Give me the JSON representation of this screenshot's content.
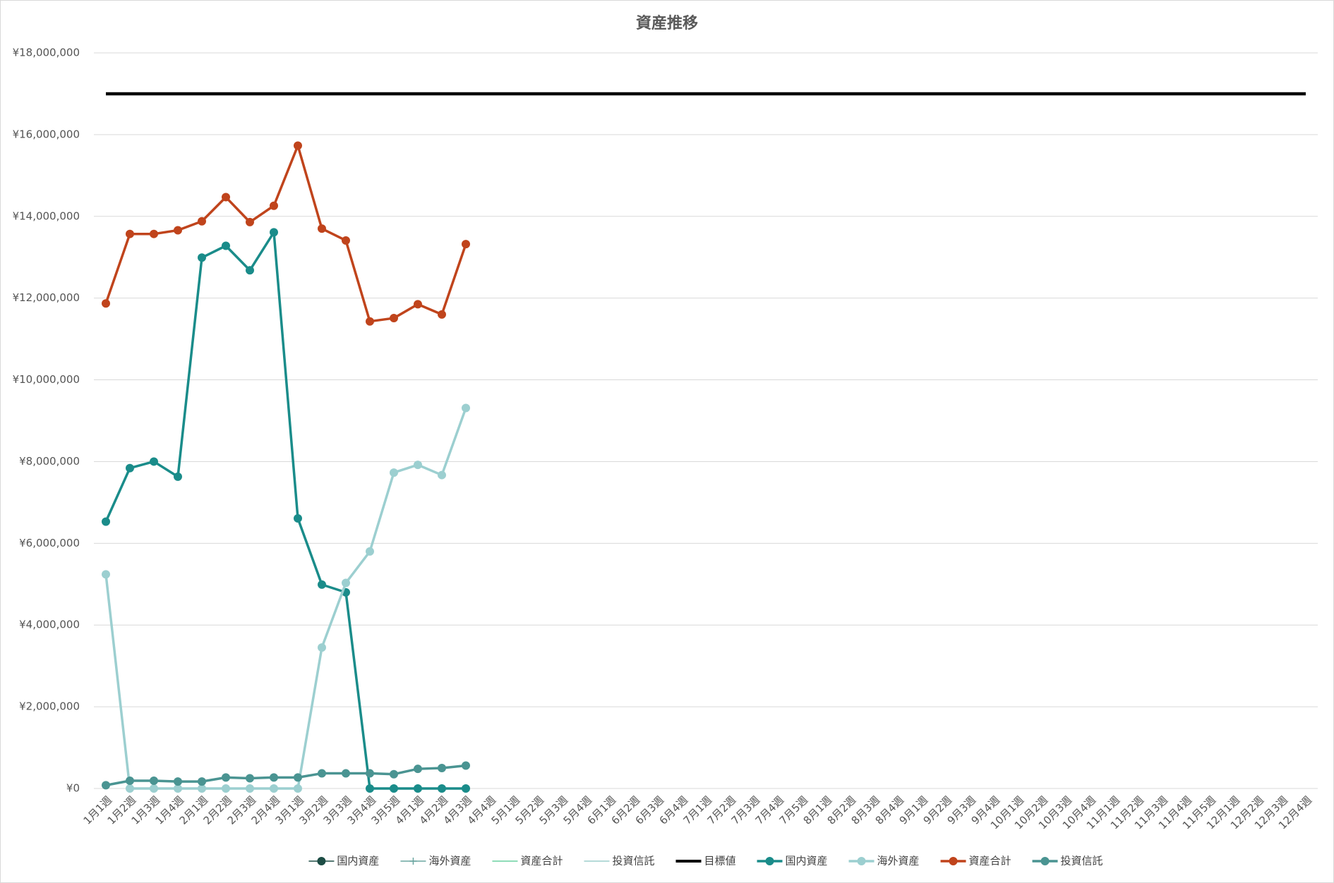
{
  "chart_data": {
    "type": "line",
    "title": "資産推移",
    "categories": [
      "1月1週",
      "1月2週",
      "1月3週",
      "1月4週",
      "2月1週",
      "2月2週",
      "2月3週",
      "2月4週",
      "3月1週",
      "3月2週",
      "3月3週",
      "3月4週",
      "3月5週",
      "4月1週",
      "4月2週",
      "4月3週",
      "4月4週",
      "5月1週",
      "5月2週",
      "5月3週",
      "5月4週",
      "6月1週",
      "6月2週",
      "6月3週",
      "6月4週",
      "7月1週",
      "7月2週",
      "7月3週",
      "7月4週",
      "7月5週",
      "8月1週",
      "8月2週",
      "8月3週",
      "8月4週",
      "9月1週",
      "9月2週",
      "9月3週",
      "9月4週",
      "10月1週",
      "10月2週",
      "10月3週",
      "10月4週",
      "11月1週",
      "11月2週",
      "11月3週",
      "11月4週",
      "11月5週",
      "12月1週",
      "12月2週",
      "12月3週",
      "12月4週"
    ],
    "ylim": [
      0,
      18000000
    ],
    "yticks": [
      {
        "value": 0,
        "label": "¥0"
      },
      {
        "value": 2000000,
        "label": "¥2,000,000"
      },
      {
        "value": 4000000,
        "label": "¥4,000,000"
      },
      {
        "value": 6000000,
        "label": "¥6,000,000"
      },
      {
        "value": 8000000,
        "label": "¥8,000,000"
      },
      {
        "value": 10000000,
        "label": "¥10,000,000"
      },
      {
        "value": 12000000,
        "label": "¥12,000,000"
      },
      {
        "value": 14000000,
        "label": "¥14,000,000"
      },
      {
        "value": 16000000,
        "label": "¥16,000,000"
      },
      {
        "value": 18000000,
        "label": "¥18,000,000"
      }
    ],
    "grid": true,
    "legend": "bottom",
    "series": [
      {
        "name": "国内資産",
        "color": "#1d4d45",
        "marker": "circle",
        "width": 1.5,
        "values": [
          null,
          null,
          null,
          null,
          null,
          null,
          null,
          null,
          null,
          null,
          null,
          null,
          null,
          null,
          null,
          null,
          null,
          null,
          null,
          null,
          null,
          null,
          null,
          null,
          null,
          null,
          null,
          null,
          null,
          null,
          null,
          null,
          null,
          null,
          null,
          null,
          null,
          null,
          null,
          null,
          null,
          null,
          null,
          null,
          null,
          null,
          null,
          null,
          null,
          null,
          null
        ]
      },
      {
        "name": "海外資産",
        "color": "#6aa5a0",
        "marker": "plus",
        "width": 1.5,
        "values": [
          null,
          null,
          null,
          null,
          null,
          null,
          null,
          null,
          null,
          null,
          null,
          null,
          null,
          null,
          null,
          null,
          null,
          null,
          null,
          null,
          null,
          null,
          null,
          null,
          null,
          null,
          null,
          null,
          null,
          null,
          null,
          null,
          null,
          null,
          null,
          null,
          null,
          null,
          null,
          null,
          null,
          null,
          null,
          null,
          null,
          null,
          null,
          null,
          null,
          null,
          null
        ]
      },
      {
        "name": "資産合計",
        "color": "#8edcb8",
        "marker": "none",
        "width": 2,
        "values": [
          null,
          null,
          null,
          null,
          null,
          null,
          null,
          null,
          null,
          null,
          null,
          null,
          null,
          null,
          null,
          null,
          null,
          null,
          null,
          null,
          null,
          null,
          null,
          null,
          null,
          null,
          null,
          null,
          null,
          null,
          null,
          null,
          null,
          null,
          null,
          null,
          null,
          null,
          null,
          null,
          null,
          null,
          null,
          null,
          null,
          null,
          null,
          null,
          null,
          null,
          null
        ]
      },
      {
        "name": "投資信託",
        "color": "#b5dad8",
        "marker": "none",
        "width": 2,
        "values": [
          null,
          null,
          null,
          null,
          null,
          null,
          null,
          null,
          null,
          null,
          null,
          null,
          null,
          null,
          null,
          null,
          null,
          null,
          null,
          null,
          null,
          null,
          null,
          null,
          null,
          null,
          null,
          null,
          null,
          null,
          null,
          null,
          null,
          null,
          null,
          null,
          null,
          null,
          null,
          null,
          null,
          null,
          null,
          null,
          null,
          null,
          null,
          null,
          null,
          null,
          null
        ]
      },
      {
        "name": "目標値",
        "color": "#000000",
        "marker": "none",
        "width": 4.5,
        "values": [
          17000000,
          17000000,
          17000000,
          17000000,
          17000000,
          17000000,
          17000000,
          17000000,
          17000000,
          17000000,
          17000000,
          17000000,
          17000000,
          17000000,
          17000000,
          17000000,
          17000000,
          17000000,
          17000000,
          17000000,
          17000000,
          17000000,
          17000000,
          17000000,
          17000000,
          17000000,
          17000000,
          17000000,
          17000000,
          17000000,
          17000000,
          17000000,
          17000000,
          17000000,
          17000000,
          17000000,
          17000000,
          17000000,
          17000000,
          17000000,
          17000000,
          17000000,
          17000000,
          17000000,
          17000000,
          17000000,
          17000000,
          17000000,
          17000000,
          17000000,
          17000000
        ]
      },
      {
        "name": "国内資産",
        "color": "#1a8c8a",
        "marker": "circle",
        "width": 3.5,
        "values": [
          6530000,
          7840000,
          8000000,
          7630000,
          12990000,
          13280000,
          12680000,
          13610000,
          6610000,
          4990000,
          4800000,
          0,
          0,
          0,
          0,
          0,
          null,
          null,
          null,
          null,
          null,
          null,
          null,
          null,
          null,
          null,
          null,
          null,
          null,
          null,
          null,
          null,
          null,
          null,
          null,
          null,
          null,
          null,
          null,
          null,
          null,
          null,
          null,
          null,
          null,
          null,
          null,
          null,
          null,
          null,
          null
        ]
      },
      {
        "name": "海外資産",
        "color": "#9ccfd0",
        "marker": "circle",
        "width": 3.5,
        "values": [
          5240000,
          0,
          0,
          0,
          0,
          0,
          0,
          0,
          0,
          3450000,
          5030000,
          5800000,
          7730000,
          7920000,
          7670000,
          9310000,
          null,
          null,
          null,
          null,
          null,
          null,
          null,
          null,
          null,
          null,
          null,
          null,
          null,
          null,
          null,
          null,
          null,
          null,
          null,
          null,
          null,
          null,
          null,
          null,
          null,
          null,
          null,
          null,
          null,
          null,
          null,
          null,
          null,
          null,
          null
        ]
      },
      {
        "name": "資産合計",
        "color": "#c0441c",
        "marker": "circle",
        "width": 3.5,
        "values": [
          11870000,
          13570000,
          13570000,
          13660000,
          13880000,
          14470000,
          13860000,
          14260000,
          15730000,
          13700000,
          13410000,
          11430000,
          11510000,
          11850000,
          11600000,
          13320000,
          null,
          null,
          null,
          null,
          null,
          null,
          null,
          null,
          null,
          null,
          null,
          null,
          null,
          null,
          null,
          null,
          null,
          null,
          null,
          null,
          null,
          null,
          null,
          null,
          null,
          null,
          null,
          null,
          null,
          null,
          null,
          null,
          null,
          null,
          null
        ]
      },
      {
        "name": "投資信託",
        "color": "#4a9492",
        "marker": "circle",
        "width": 3.5,
        "values": [
          80000,
          190000,
          190000,
          170000,
          170000,
          270000,
          250000,
          270000,
          270000,
          370000,
          370000,
          370000,
          350000,
          480000,
          500000,
          560000,
          null,
          null,
          null,
          null,
          null,
          null,
          null,
          null,
          null,
          null,
          null,
          null,
          null,
          null,
          null,
          null,
          null,
          null,
          null,
          null,
          null,
          null,
          null,
          null,
          null,
          null,
          null,
          null,
          null,
          null,
          null,
          null,
          null,
          null,
          null
        ]
      }
    ]
  }
}
